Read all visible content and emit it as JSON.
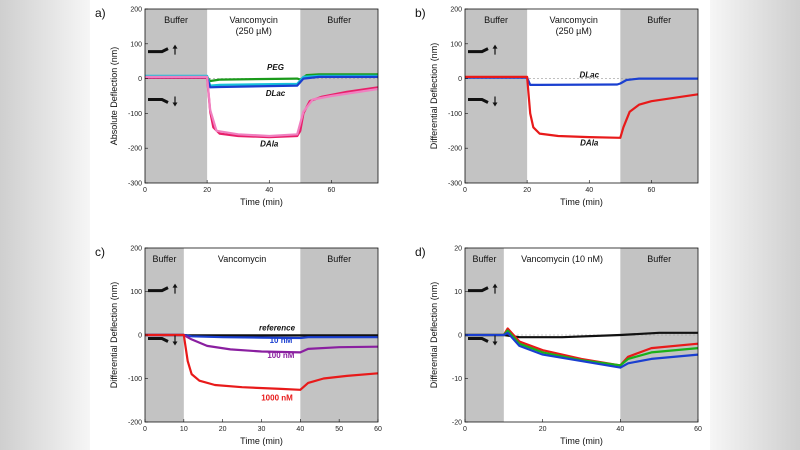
{
  "chart_data": [
    {
      "panel_label": "a)",
      "type": "line",
      "xlabel": "Time (min)",
      "ylabel": "Absolute Deflection (nm)",
      "xlim": [
        0,
        75
      ],
      "ylim": [
        -300,
        200
      ],
      "xticks": [
        0,
        20,
        40,
        60
      ],
      "yticks": [
        200,
        100,
        0,
        -100,
        -200,
        -300
      ],
      "regions": [
        {
          "label": "Buffer",
          "x0": 0,
          "x1": 20,
          "shaded": true
        },
        {
          "label": "Vancomycin\n(250 µM)",
          "x0": 20,
          "x1": 50,
          "shaded": false
        },
        {
          "label": "Buffer",
          "x0": 50,
          "x1": 75,
          "shaded": true
        }
      ],
      "series": [
        {
          "name": "PEG",
          "color": "#1a9a1a",
          "points": [
            [
              0,
              5
            ],
            [
              20,
              5
            ],
            [
              21,
              -7
            ],
            [
              24,
              -3
            ],
            [
              49,
              0
            ],
            [
              50,
              -3
            ],
            [
              52,
              10
            ],
            [
              56,
              12
            ],
            [
              75,
              12
            ]
          ]
        },
        {
          "name": "cyan",
          "color": "#18c2d8",
          "points": [
            [
              0,
              8
            ],
            [
              20,
              8
            ],
            [
              21,
              -20
            ],
            [
              24,
              -18
            ],
            [
              49,
              -15
            ],
            [
              51,
              5
            ],
            [
              56,
              8
            ],
            [
              75,
              8
            ]
          ]
        },
        {
          "name": "DLac",
          "color": "#1a3fd0",
          "points": [
            [
              0,
              3
            ],
            [
              20,
              3
            ],
            [
              21,
              -25
            ],
            [
              24,
              -24
            ],
            [
              49,
              -20
            ],
            [
              51,
              0
            ],
            [
              56,
              5
            ],
            [
              75,
              5
            ]
          ]
        },
        {
          "name": "DAla",
          "color": "#e8206a",
          "points": [
            [
              0,
              3
            ],
            [
              20,
              3
            ],
            [
              21,
              -95
            ],
            [
              22,
              -140
            ],
            [
              24,
              -158
            ],
            [
              30,
              -165
            ],
            [
              40,
              -168
            ],
            [
              49,
              -165
            ],
            [
              50,
              -150
            ],
            [
              51,
              -100
            ],
            [
              53,
              -65
            ],
            [
              57,
              -52
            ],
            [
              65,
              -38
            ],
            [
              75,
              -25
            ]
          ]
        },
        {
          "name": "pink",
          "color": "#f080c0",
          "points": [
            [
              0,
              5
            ],
            [
              20,
              5
            ],
            [
              21,
              -90
            ],
            [
              23,
              -150
            ],
            [
              30,
              -160
            ],
            [
              40,
              -165
            ],
            [
              49,
              -160
            ],
            [
              51,
              -95
            ],
            [
              54,
              -60
            ],
            [
              60,
              -50
            ],
            [
              75,
              -30
            ]
          ]
        }
      ],
      "annotations": [
        {
          "text": "PEG",
          "x": 42,
          "y": 25,
          "color": "#111"
        },
        {
          "text": "DLac",
          "x": 42,
          "y": -50,
          "color": "#111"
        },
        {
          "text": "DAla",
          "x": 40,
          "y": -195,
          "color": "#111"
        }
      ]
    },
    {
      "panel_label": "b)",
      "type": "line",
      "xlabel": "Time (min)",
      "ylabel": "Differential Deflection (nm)",
      "xlim": [
        0,
        75
      ],
      "ylim": [
        -300,
        200
      ],
      "xticks": [
        0,
        20,
        40,
        60
      ],
      "yticks": [
        200,
        100,
        0,
        -100,
        -200,
        -300
      ],
      "regions": [
        {
          "label": "Buffer",
          "x0": 0,
          "x1": 20,
          "shaded": true
        },
        {
          "label": "Vancomycin\n(250 µM)",
          "x0": 20,
          "x1": 50,
          "shaded": false
        },
        {
          "label": "Buffer",
          "x0": 50,
          "x1": 75,
          "shaded": true
        }
      ],
      "series": [
        {
          "name": "DLac",
          "color": "#1a3fd0",
          "points": [
            [
              0,
              3
            ],
            [
              20,
              3
            ],
            [
              21,
              -18
            ],
            [
              24,
              -18
            ],
            [
              49,
              -17
            ],
            [
              50,
              -14
            ],
            [
              52,
              -4
            ],
            [
              56,
              0
            ],
            [
              75,
              0
            ]
          ]
        },
        {
          "name": "DAla",
          "color": "#e81a1a",
          "points": [
            [
              0,
              5
            ],
            [
              20,
              5
            ],
            [
              21,
              -100
            ],
            [
              22,
              -140
            ],
            [
              24,
              -158
            ],
            [
              30,
              -165
            ],
            [
              40,
              -168
            ],
            [
              50,
              -170
            ],
            [
              51,
              -140
            ],
            [
              53,
              -95
            ],
            [
              56,
              -75
            ],
            [
              60,
              -65
            ],
            [
              75,
              -45
            ]
          ]
        }
      ],
      "annotations": [
        {
          "text": "DLac",
          "x": 40,
          "y": 3,
          "color": "#111"
        },
        {
          "text": "DAla",
          "x": 40,
          "y": -192,
          "color": "#111"
        }
      ]
    },
    {
      "panel_label": "c)",
      "type": "line",
      "xlabel": "Time (min)",
      "ylabel": "Differential Deflection (nm)",
      "xlim": [
        0,
        60
      ],
      "ylim": [
        -200,
        200
      ],
      "xticks": [
        0,
        10,
        20,
        30,
        40,
        50,
        60
      ],
      "yticks": [
        200,
        100,
        0,
        -100,
        -200
      ],
      "regions": [
        {
          "label": "Buffer",
          "x0": 0,
          "x1": 10,
          "shaded": true
        },
        {
          "label": "Vancomycin",
          "x0": 10,
          "x1": 40,
          "shaded": false
        },
        {
          "label": "Buffer",
          "x0": 40,
          "x1": 60,
          "shaded": true
        }
      ],
      "series": [
        {
          "name": "reference",
          "color": "#111111",
          "points": [
            [
              0,
              0
            ],
            [
              10,
              0
            ],
            [
              11,
              -1
            ],
            [
              40,
              -1
            ],
            [
              60,
              -1
            ]
          ]
        },
        {
          "name": "10 nM",
          "color": "#1a3fd0",
          "points": [
            [
              0,
              0
            ],
            [
              10,
              0
            ],
            [
              12,
              -3
            ],
            [
              20,
              -5
            ],
            [
              30,
              -6
            ],
            [
              40,
              -7
            ],
            [
              42,
              -5
            ],
            [
              60,
              -5
            ]
          ]
        },
        {
          "name": "100 nM",
          "color": "#8a1fa0",
          "points": [
            [
              0,
              0
            ],
            [
              10,
              0
            ],
            [
              12,
              -10
            ],
            [
              16,
              -25
            ],
            [
              22,
              -33
            ],
            [
              30,
              -38
            ],
            [
              40,
              -40
            ],
            [
              42,
              -32
            ],
            [
              50,
              -28
            ],
            [
              60,
              -27
            ]
          ]
        },
        {
          "name": "1000 nM",
          "color": "#e81a1a",
          "points": [
            [
              0,
              0
            ],
            [
              10,
              0
            ],
            [
              11,
              -60
            ],
            [
              12,
              -90
            ],
            [
              14,
              -105
            ],
            [
              18,
              -115
            ],
            [
              25,
              -120
            ],
            [
              35,
              -124
            ],
            [
              40,
              -126
            ],
            [
              42,
              -110
            ],
            [
              46,
              -100
            ],
            [
              52,
              -94
            ],
            [
              60,
              -88
            ]
          ]
        }
      ],
      "annotations": [
        {
          "text": "reference",
          "x": 34,
          "y": 10,
          "color": "#111"
        },
        {
          "text": "10 nM",
          "x": 35,
          "y": -18,
          "color": "#1a3fd0"
        },
        {
          "text": "100 nM",
          "x": 35,
          "y": -53,
          "color": "#8a1fa0"
        },
        {
          "text": "1000 nM",
          "x": 34,
          "y": -150,
          "color": "#e81a1a"
        }
      ]
    },
    {
      "panel_label": "d)",
      "type": "line",
      "xlabel": "Time (min)",
      "ylabel": "Differential Deflection (nm)",
      "xlim": [
        0,
        60
      ],
      "ylim": [
        -20,
        20
      ],
      "xticks": [
        0,
        20,
        40,
        60
      ],
      "yticks": [
        20,
        10,
        0,
        -10,
        -20
      ],
      "regions": [
        {
          "label": "Buffer",
          "x0": 0,
          "x1": 10,
          "shaded": true
        },
        {
          "label": "Vancomycin (10 nM)",
          "x0": 10,
          "x1": 40,
          "shaded": false
        },
        {
          "label": "Buffer",
          "x0": 40,
          "x1": 60,
          "shaded": true
        }
      ],
      "series": [
        {
          "name": "black",
          "color": "#111111",
          "points": [
            [
              0,
              0
            ],
            [
              10,
              0
            ],
            [
              14,
              -0.5
            ],
            [
              25,
              -0.5
            ],
            [
              40,
              0
            ],
            [
              50,
              0.5
            ],
            [
              60,
              0.5
            ]
          ]
        },
        {
          "name": "red",
          "color": "#e81a1a",
          "points": [
            [
              0,
              0
            ],
            [
              10,
              0
            ],
            [
              11,
              1.5
            ],
            [
              14,
              -1.5
            ],
            [
              20,
              -3.5
            ],
            [
              30,
              -5.5
            ],
            [
              40,
              -7
            ],
            [
              42,
              -5
            ],
            [
              48,
              -3
            ],
            [
              60,
              -2
            ]
          ]
        },
        {
          "name": "green",
          "color": "#1ab01a",
          "points": [
            [
              0,
              0
            ],
            [
              10,
              0
            ],
            [
              11,
              1
            ],
            [
              14,
              -2
            ],
            [
              20,
              -4
            ],
            [
              30,
              -5.8
            ],
            [
              40,
              -7
            ],
            [
              42,
              -5.5
            ],
            [
              48,
              -4
            ],
            [
              60,
              -3
            ]
          ]
        },
        {
          "name": "blue",
          "color": "#1a3fd0",
          "points": [
            [
              0,
              0
            ],
            [
              10,
              0
            ],
            [
              11,
              0.5
            ],
            [
              14,
              -2.5
            ],
            [
              20,
              -4.5
            ],
            [
              30,
              -6
            ],
            [
              40,
              -7.5
            ],
            [
              42,
              -6.5
            ],
            [
              48,
              -5.5
            ],
            [
              60,
              -4.5
            ]
          ]
        }
      ],
      "annotations": []
    }
  ]
}
